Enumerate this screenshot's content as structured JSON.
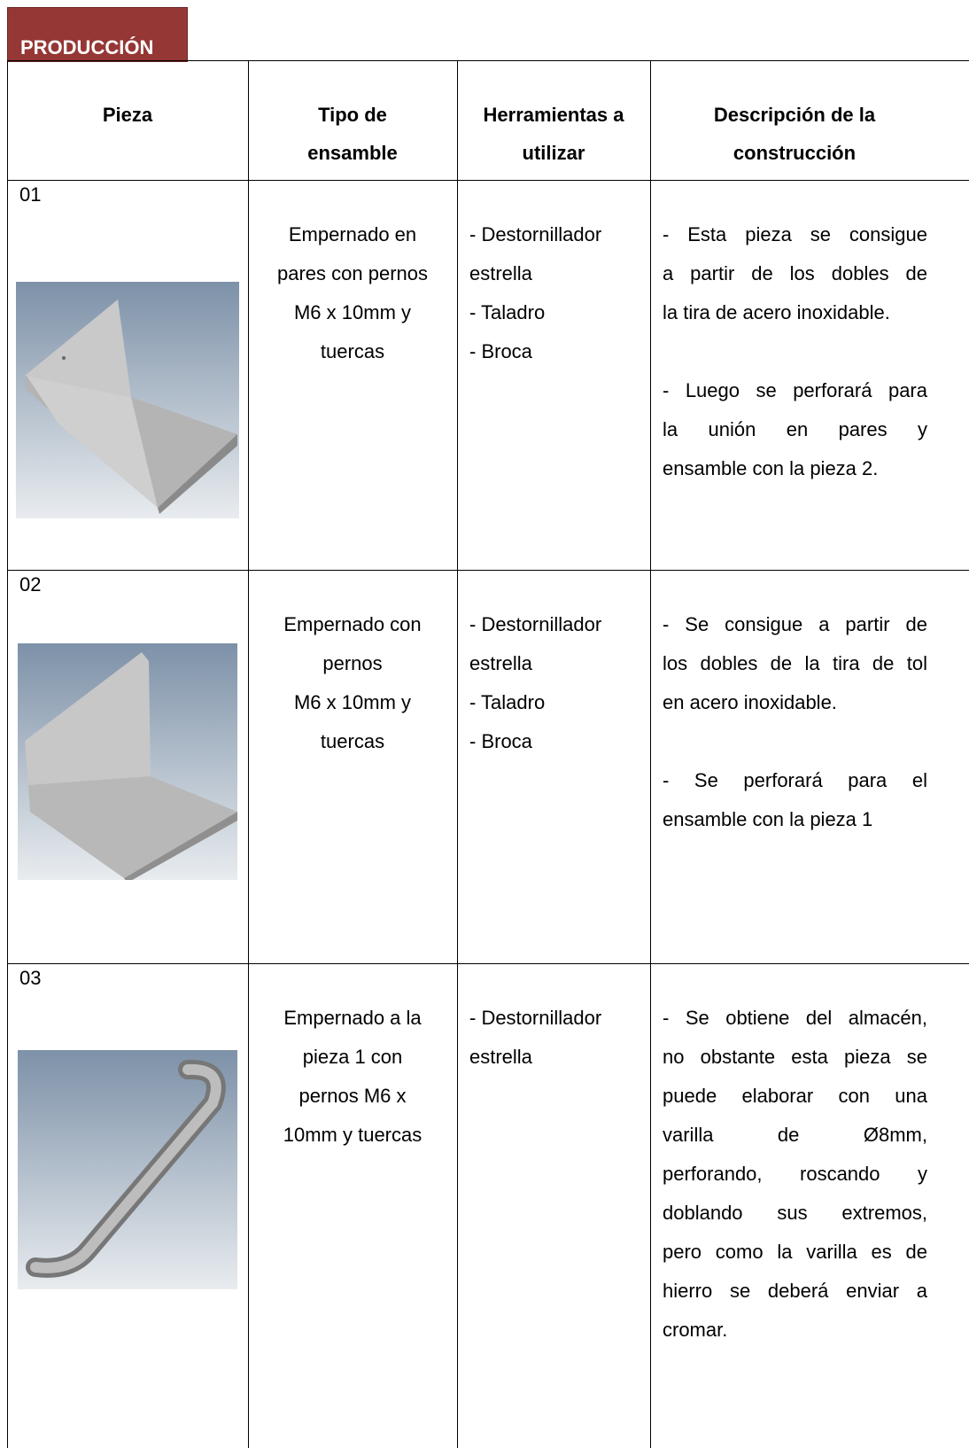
{
  "tab": "PRODUCCIÓN",
  "table": {
    "header": [
      [
        "Pieza"
      ],
      [
        "Tipo de",
        "ensamble"
      ],
      [
        "Herramientas a",
        "utilizar"
      ],
      [
        "Descripción de la",
        "construcción"
      ]
    ],
    "rows": [
      {
        "pieza": "01",
        "ensamble": [
          "Empernado en",
          "pares con pernos",
          "M6 x 10mm y",
          "tuercas"
        ],
        "herramientas": [
          "- Destornillador",
          "estrella",
          "- Taladro",
          "- Broca"
        ],
        "descripcion": [
          [
            "- Esta pieza se consigue",
            "a partir de los dobles de",
            "la tira de acero inoxidable."
          ],
          [
            "- Luego se perforará para",
            "la unión en pares y",
            "ensamble con la pieza 2."
          ]
        ]
      },
      {
        "pieza": "02",
        "ensamble": [
          "Empernado con",
          "pernos",
          "M6 x 10mm y",
          "tuercas"
        ],
        "herramientas": [
          "- Destornillador",
          "estrella",
          "- Taladro",
          "- Broca"
        ],
        "descripcion": [
          [
            "- Se consigue a partir de",
            "los dobles de la tira de tol",
            "en acero inoxidable."
          ],
          [
            "- Se perforará para el",
            "ensamble con la pieza 1"
          ]
        ]
      },
      {
        "pieza": "03",
        "ensamble": [
          "Empernado a la",
          "pieza 1 con",
          "pernos M6 x",
          "10mm y tuercas"
        ],
        "herramientas": [
          "- Destornillador",
          "estrella"
        ],
        "descripcion": [
          [
            "- Se obtiene del almacén,",
            "no obstante esta pieza se",
            "puede elaborar con una",
            "varilla de Ø8mm,",
            "perforando, roscando y",
            "doblando sus extremos,",
            "pero como la varilla es de",
            "hierro se deberá enviar a",
            "cromar."
          ]
        ]
      }
    ]
  }
}
